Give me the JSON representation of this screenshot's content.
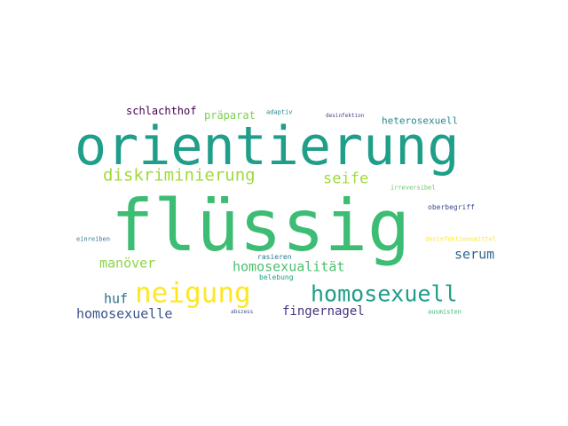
{
  "words": [
    {
      "text": "flüssig",
      "color": "#3dbc74"
    },
    {
      "text": "orientierung",
      "color": "#1f9e89"
    },
    {
      "text": "neigung",
      "color": "#fde725"
    },
    {
      "text": "homosexuell",
      "color": "#1f9e89"
    },
    {
      "text": "diskriminierung",
      "color": "#9fda3a"
    },
    {
      "text": "seife",
      "color": "#9fda3a"
    },
    {
      "text": "homosexualität",
      "color": "#4ac16d"
    },
    {
      "text": "manöver",
      "color": "#8bd646"
    },
    {
      "text": "serum",
      "color": "#31688e"
    },
    {
      "text": "homosexuelle",
      "color": "#3b528b"
    },
    {
      "text": "huf",
      "color": "#2c718e"
    },
    {
      "text": "fingernagel",
      "color": "#46327e"
    },
    {
      "text": "schlachthof",
      "color": "#440154"
    },
    {
      "text": "präparat",
      "color": "#7ad151"
    },
    {
      "text": "heterosexuell",
      "color": "#25858e"
    },
    {
      "text": "adaptiv",
      "color": "#26828e"
    },
    {
      "text": "desinfektion",
      "color": "#414487"
    },
    {
      "text": "irreversibel",
      "color": "#5ec962"
    },
    {
      "text": "oberbegriff",
      "color": "#3e4a89"
    },
    {
      "text": "einreiben",
      "color": "#2a788e"
    },
    {
      "text": "desinfektionsmittel",
      "color": "#fde725"
    },
    {
      "text": "rasieren",
      "color": "#2a788e"
    },
    {
      "text": "belebung",
      "color": "#1f9e89"
    },
    {
      "text": "abszess",
      "color": "#3b528b"
    },
    {
      "text": "ausmisten",
      "color": "#35b779"
    }
  ]
}
